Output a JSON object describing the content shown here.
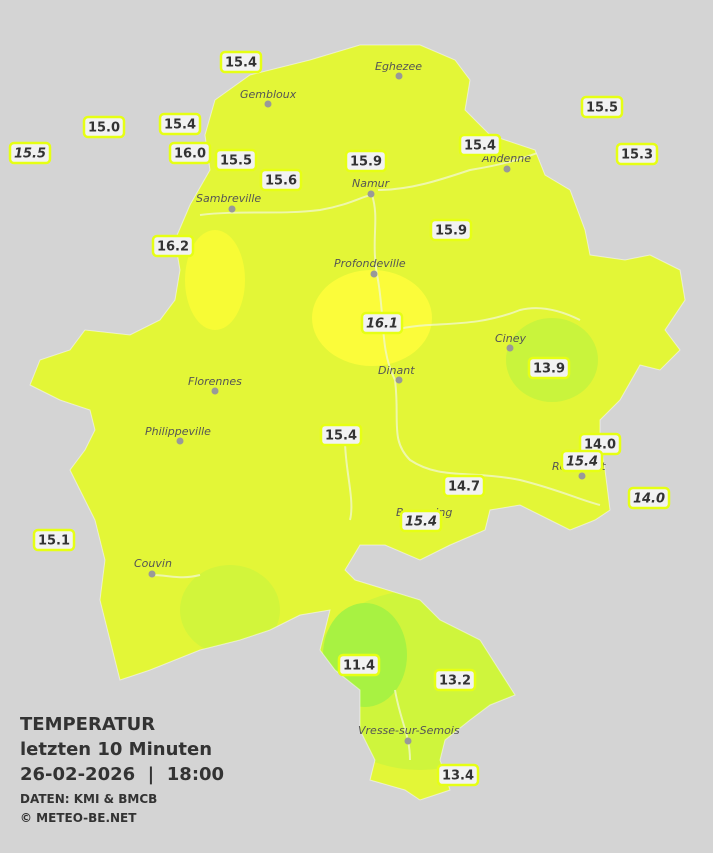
{
  "legend": {
    "title": "TEMPERATUR",
    "period": "letzten 10 Minuten",
    "datetime": "26-02-2026  |  18:00",
    "source": "DATEN: KMI & BMCB",
    "copyright": "© METEO-BE.NET"
  },
  "cities": [
    "Eghezee",
    "Gembloux",
    "Andenne",
    "Namur",
    "Sambreville",
    "Profondeville",
    "Ciney",
    "Florennes",
    "Dinant",
    "Philippeville",
    "Rochefort",
    "Beauraing",
    "Couvin",
    "Vresse-sur-Semois"
  ],
  "stations": [
    "15.4",
    "15.5",
    "15.0",
    "15.5",
    "15.4",
    "16.0",
    "15.5",
    "15.4",
    "15.3",
    "15.9",
    "15.6",
    "15.9",
    "16.2",
    "16.1",
    "13.9",
    "15.4",
    "14.0",
    "15.4",
    "14.7",
    "14.0",
    "15.4",
    "15.1",
    "11.4",
    "13.2",
    "13.4"
  ]
}
